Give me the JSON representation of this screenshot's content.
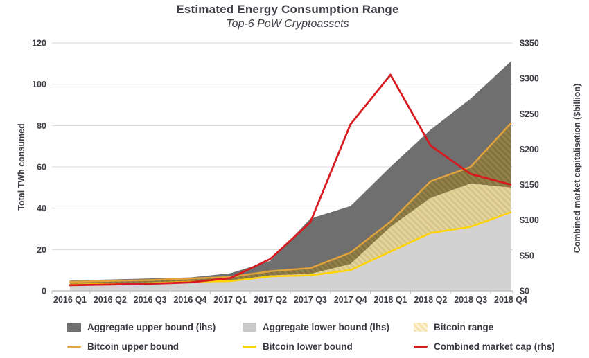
{
  "header": {
    "title": "Estimated Energy Consumption Range",
    "subtitle": "Top-6 PoW Cryptoassets"
  },
  "chart_data": {
    "type": "area",
    "subtype": "combo-area-line-dual-axis",
    "title": "Estimated Energy Consumption Range",
    "subtitle": "Top-6 PoW Cryptoassets",
    "categories": [
      "2016 Q1",
      "2016 Q2",
      "2016 Q3",
      "2016 Q4",
      "2017 Q1",
      "2017 Q2",
      "2017 Q3",
      "2017 Q4",
      "2018 Q1",
      "2018 Q2",
      "2018 Q3",
      "2018 Q4"
    ],
    "series": [
      {
        "name": "Aggregate upper bound (lhs)",
        "type": "area",
        "axis": "left",
        "color": "#6f6f6f",
        "values": [
          5.0,
          5.5,
          6.0,
          6.5,
          8.5,
          14.5,
          35,
          41,
          60,
          78,
          93,
          111
        ]
      },
      {
        "name": "Aggregate lower bound (lhs)",
        "type": "area",
        "axis": "left",
        "color": "#d2d2d2",
        "values": [
          3.2,
          3.6,
          3.9,
          4.6,
          5.0,
          7.5,
          8.2,
          13,
          31,
          45,
          52,
          50
        ]
      },
      {
        "name": "Bitcoin upper bound",
        "type": "line",
        "axis": "left",
        "color": "#e2a33d",
        "values": [
          4.4,
          4.8,
          5.2,
          6.0,
          6.7,
          9.5,
          11,
          18.5,
          33.5,
          53,
          60,
          81
        ]
      },
      {
        "name": "Bitcoin lower bound",
        "type": "line",
        "axis": "left",
        "color": "#ffd400",
        "values": [
          3.0,
          3.4,
          3.7,
          4.4,
          4.7,
          7.0,
          7.5,
          10,
          19,
          28,
          31,
          38
        ]
      },
      {
        "name": "Combined market cap (rhs)",
        "type": "line",
        "axis": "right",
        "color": "#d71920",
        "values": [
          8,
          9,
          10,
          12,
          18,
          45,
          97,
          235,
          305,
          205,
          165,
          150
        ]
      }
    ],
    "bitcoin_range": {
      "name": "Bitcoin range",
      "between": [
        "Bitcoin lower bound",
        "Bitcoin upper bound"
      ],
      "pattern": "diagonal-hatch"
    },
    "left_axis": {
      "label": "Total TWh consumed",
      "ticks": [
        "0",
        "20",
        "40",
        "60",
        "80",
        "100",
        "120"
      ],
      "range": [
        0,
        120
      ]
    },
    "right_axis": {
      "label": "Combined market capitalisation ($billion)",
      "ticks": [
        "$0",
        "$50",
        "$100",
        "$150",
        "$200",
        "$250",
        "$300",
        "$350"
      ],
      "range": [
        0,
        350
      ]
    },
    "grid": "horizontal",
    "legend_position": "bottom"
  },
  "legend": {
    "items": [
      "Aggregate upper bound (lhs)",
      "Aggregate lower bound (lhs)",
      "Bitcoin range",
      "Bitcoin upper bound",
      "Bitcoin lower bound",
      "Combined market cap (rhs)"
    ]
  }
}
